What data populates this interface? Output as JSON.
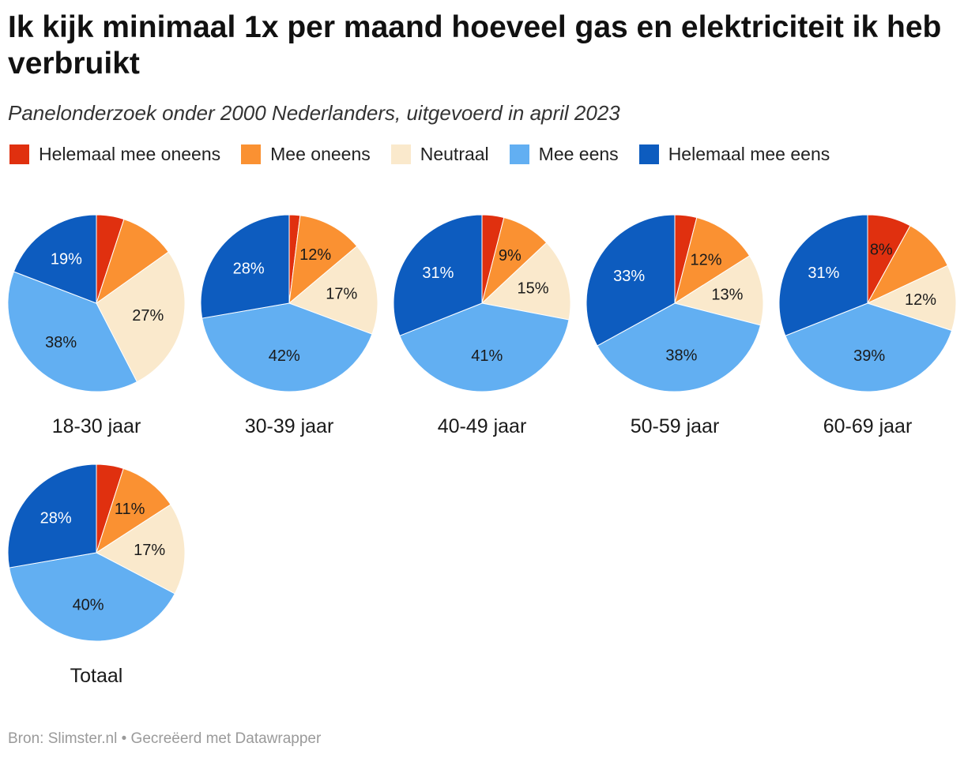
{
  "title": "Ik kijk minimaal 1x per maand hoeveel gas en elektriciteit ik heb verbruikt",
  "subtitle": "Panelonderzoek onder 2000 Nederlanders, uitgevoerd in april 2023",
  "legend": [
    {
      "label": "Helemaal mee oneens",
      "color": "#e0300f"
    },
    {
      "label": "Mee oneens",
      "color": "#fa9132"
    },
    {
      "label": "Neutraal",
      "color": "#fae9cc"
    },
    {
      "label": "Mee eens",
      "color": "#62aff2"
    },
    {
      "label": "Helemaal mee eens",
      "color": "#0d5cbf"
    }
  ],
  "footer": "Bron: Slimster.nl • Gecreëerd met Datawrapper",
  "chart_data": {
    "type": "pie",
    "series_names": [
      "Helemaal mee oneens",
      "Mee oneens",
      "Neutraal",
      "Mee eens",
      "Helemaal mee eens"
    ],
    "colors": [
      "#e0300f",
      "#fa9132",
      "#fae9cc",
      "#62aff2",
      "#0d5cbf"
    ],
    "pies": [
      {
        "label": "18-30 jaar",
        "values": [
          5,
          10,
          27,
          38,
          19
        ],
        "value_labels": [
          "",
          "",
          "27%",
          "38%",
          "19%"
        ]
      },
      {
        "label": "30-39 jaar",
        "values": [
          2,
          12,
          17,
          42,
          28
        ],
        "value_labels": [
          "",
          "12%",
          "17%",
          "42%",
          "28%"
        ]
      },
      {
        "label": "40-49 jaar",
        "values": [
          4,
          9,
          15,
          41,
          31
        ],
        "value_labels": [
          "",
          "9%",
          "15%",
          "41%",
          "31%"
        ]
      },
      {
        "label": "50-59 jaar",
        "values": [
          4,
          12,
          13,
          38,
          33
        ],
        "value_labels": [
          "",
          "12%",
          "13%",
          "38%",
          "33%"
        ]
      },
      {
        "label": "60-69 jaar",
        "values": [
          8,
          10,
          12,
          39,
          31
        ],
        "value_labels": [
          "8%",
          "",
          "12%",
          "39%",
          "31%"
        ]
      },
      {
        "label": "Totaal",
        "values": [
          5,
          11,
          17,
          40,
          28
        ],
        "value_labels": [
          "",
          "11%",
          "17%",
          "40%",
          "28%"
        ]
      }
    ]
  }
}
